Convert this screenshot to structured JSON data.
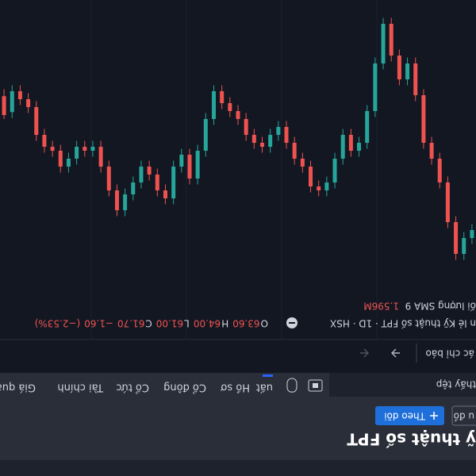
{
  "header": {
    "title": "ỹ thuật số FPT",
    "chart_button": "u đồ",
    "follow_button": "Theo dõi"
  },
  "tabs": [
    "uất",
    "Hồ sơ",
    "Cổ đông",
    "Cổ tức",
    "Tài chính",
    "Giá quá k"
  ],
  "toolbar": {
    "file": "thấy tệp",
    "indicators": "ác chỉ báo"
  },
  "chart_data": {
    "type": "candlestick",
    "legend": "n lẻ Kỹ thuật số FPT · 1D · HSX",
    "legend_values": [
      {
        "prefix": "O",
        "value": "63.60"
      },
      {
        "prefix": "H",
        "value": "64.00"
      },
      {
        "prefix": "L",
        "value": "61.00"
      },
      {
        "prefix": "C",
        "value": "61.70"
      },
      {
        "prefix": "",
        "value": "−1.60"
      },
      {
        "prefix": "",
        "value": "(−2.53%)"
      }
    ],
    "volume_label": "ối lượng SMA 9",
    "volume_value": "1.596M",
    "up_color": "#26a69a",
    "down_color": "#ef5350",
    "ylim": [
      52,
      82.4
    ],
    "open": [
      75.2,
      76.0,
      77.6,
      74.4,
      70.4,
      68.0,
      66.4,
      61.6,
      58.4,
      60.0,
      57.6,
      54.4,
      58.4,
      63.2,
      66.4,
      67.2,
      65.6,
      68.0,
      70.4,
      71.2,
      70.8,
      68.8,
      68.0,
      66.4,
      64.8,
      65.6,
      66.8,
      66.4,
      65.6,
      64.0,
      63.2,
      62.4,
      61.2,
      64.0,
      67.2,
      70.0,
      67.6,
      68.8,
      72.0,
      71.2,
      69.6,
      68.8,
      70.4,
      71.6,
      73.2,
      71.2,
      68.8,
      66.8,
      67.2,
      66.8,
      68.0,
      68.8,
      67.2,
      66.8,
      65.6,
      62.8,
      62.0,
      61.2,
      63.6
    ],
    "high": [
      76.6,
      78.2,
      78.2,
      75.0,
      71.0,
      68.6,
      67.0,
      62.2,
      60.6,
      60.6,
      58.2,
      59.0,
      63.8,
      67.0,
      67.8,
      67.8,
      68.6,
      71.0,
      71.8,
      71.8,
      71.4,
      69.4,
      68.6,
      67.0,
      66.2,
      67.4,
      67.4,
      67.0,
      66.2,
      64.6,
      63.8,
      63.0,
      64.6,
      67.8,
      70.6,
      70.6,
      69.4,
      72.6,
      72.6,
      71.8,
      70.2,
      71.0,
      72.2,
      73.8,
      73.8,
      71.8,
      69.4,
      67.8,
      67.8,
      68.6,
      69.4,
      69.4,
      67.8,
      67.4,
      66.2,
      63.4,
      62.6,
      63.9,
      64.0
    ],
    "low": [
      74.6,
      75.4,
      73.8,
      69.8,
      67.4,
      65.8,
      61.0,
      57.8,
      57.8,
      57.0,
      53.8,
      53.8,
      57.8,
      62.6,
      65.8,
      65.0,
      65.0,
      67.4,
      69.8,
      70.2,
      68.2,
      67.4,
      65.8,
      64.2,
      64.2,
      65.0,
      65.8,
      65.0,
      63.4,
      62.6,
      61.8,
      60.6,
      60.6,
      63.4,
      66.6,
      67.0,
      67.0,
      68.2,
      70.6,
      69.0,
      68.2,
      68.2,
      69.8,
      71.0,
      70.6,
      68.2,
      66.2,
      66.2,
      66.2,
      66.2,
      67.4,
      66.6,
      66.2,
      65.0,
      62.2,
      61.4,
      60.6,
      60.6,
      61.0
    ],
    "close": [
      76.0,
      77.6,
      74.4,
      70.4,
      68.0,
      66.4,
      61.6,
      58.4,
      60.0,
      57.6,
      54.4,
      58.4,
      63.2,
      66.4,
      67.2,
      65.6,
      68.0,
      70.4,
      71.2,
      70.8,
      68.8,
      68.0,
      66.4,
      64.8,
      65.6,
      66.8,
      66.4,
      65.6,
      64.0,
      63.2,
      62.4,
      61.2,
      64.0,
      67.2,
      70.0,
      67.6,
      68.8,
      72.0,
      71.2,
      69.6,
      68.8,
      70.4,
      71.6,
      73.2,
      71.2,
      68.8,
      66.8,
      67.2,
      66.8,
      68.0,
      68.8,
      67.2,
      66.8,
      65.6,
      62.8,
      62.0,
      61.2,
      63.3,
      61.7
    ]
  }
}
